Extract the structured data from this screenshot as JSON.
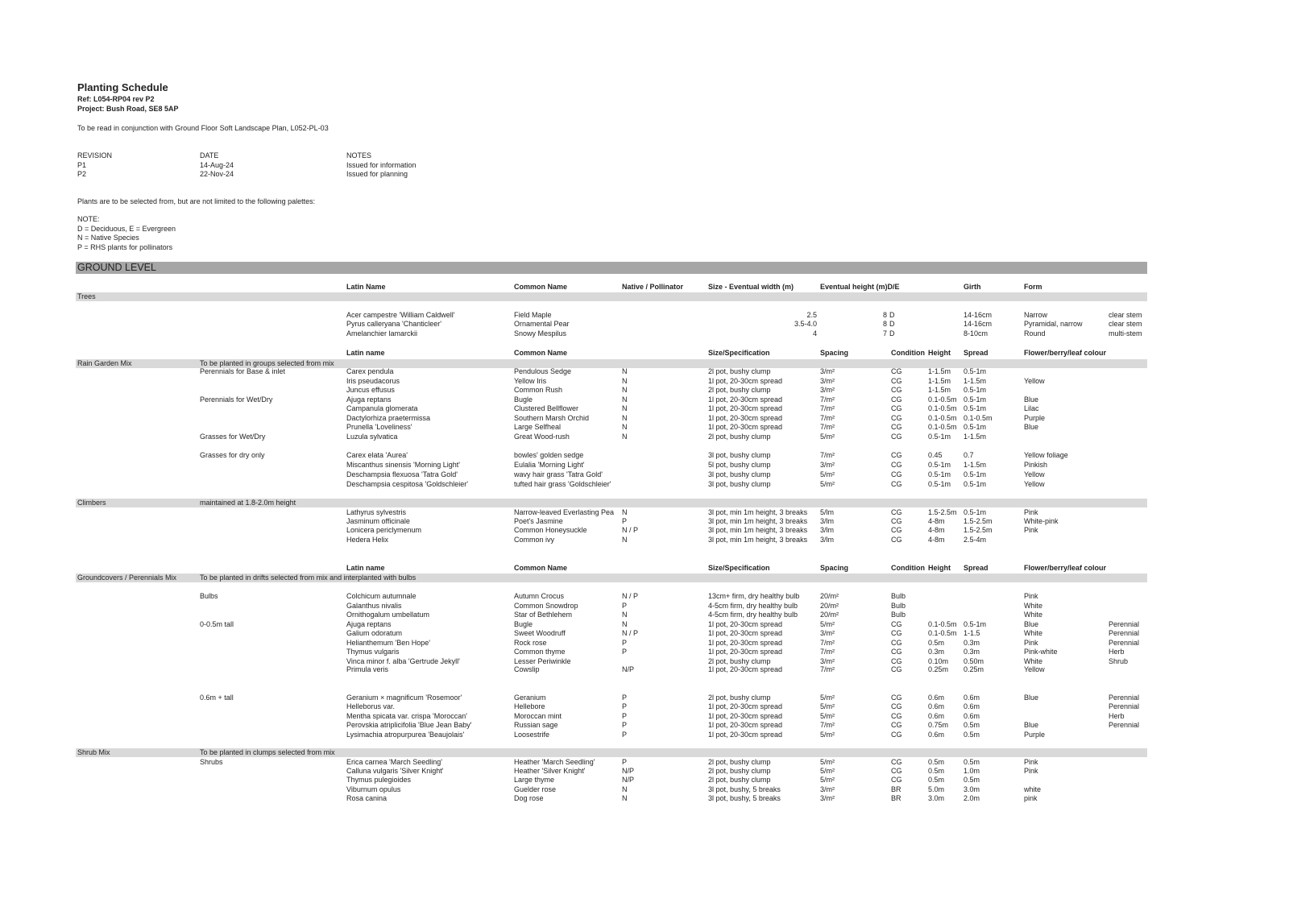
{
  "header": {
    "title": "Planting Schedule",
    "ref": "Ref: L054-RP04 rev P2",
    "project": "Project: Bush Road, SE8 5AP",
    "read_note": "To be read in conjunction with Ground Floor Soft Landscape Plan, L052-PL-03"
  },
  "revisions": {
    "headers": [
      "REVISION",
      "DATE",
      "NOTES"
    ],
    "rows": [
      [
        "P1",
        "14-Aug-24",
        "Issued for information"
      ],
      [
        "P2",
        "22-Nov-24",
        "Issued for planning"
      ]
    ]
  },
  "palette_note": "Plants are to be selected from, but are not limited to the following palettes:",
  "legend": [
    "NOTE:",
    "D = Deciduous, E = Evergreen",
    "N = Native Species",
    "P = RHS plants for pollinators"
  ],
  "level_title": "GROUND LEVEL",
  "tree_headers": [
    "Latin Name",
    "Common Name",
    "Native / Pollinator",
    "Size - Eventual width (m)",
    "Eventual height (m)D/E",
    "Girth",
    "Form"
  ],
  "mix_headers": [
    "Latin name",
    "Common Name",
    "Size/Specification",
    "Spacing",
    "Condition",
    "Height",
    "Spread",
    "Flower/berry/leaf colour"
  ],
  "trees": {
    "label": "Trees",
    "rows": [
      [
        "Acer campestre 'William Caldwell'",
        "Field Maple",
        "2.5",
        "8",
        "D",
        "14-16cm",
        "Narrow",
        "clear stem"
      ],
      [
        "Pyrus calleryana 'Chanticleer'",
        "Ornamental Pear",
        "3.5-4.0",
        "8",
        "D",
        "14-16cm",
        "Pyramidal, narrow",
        "clear stem"
      ],
      [
        "Amelanchier lamarckii",
        "Snowy Mespilus",
        "4",
        "7",
        "D",
        "8-10cm",
        "Round",
        "multi-stem"
      ]
    ]
  },
  "sections": [
    {
      "label": "Rain Garden Mix",
      "note": "To be planted in groups selected from mix",
      "groups": [
        {
          "label": "Perennials for Base & inlet",
          "rows": [
            [
              "Carex pendula",
              "Pendulous Sedge",
              "N",
              "2l pot, bushy clump",
              "3/m²",
              "CG",
              "1-1.5m",
              "0.5-1m",
              "",
              ""
            ],
            [
              "Iris pseudacorus",
              "Yellow Iris",
              "N",
              "1l pot, 20-30cm spread",
              "3/m²",
              "CG",
              "1-1.5m",
              "1-1.5m",
              "Yellow",
              ""
            ],
            [
              "Juncus effusus",
              "Common Rush",
              "N",
              "2l pot, bushy clump",
              "3/m²",
              "CG",
              "1-1.5m",
              "0.5-1m",
              "",
              ""
            ]
          ]
        },
        {
          "label": "Perennials for Wet/Dry",
          "rows": [
            [
              "Ajuga reptans",
              "Bugle",
              "N",
              "1l pot, 20-30cm spread",
              "7/m²",
              "CG",
              "0.1-0.5m",
              "0.5-1m",
              "Blue",
              ""
            ],
            [
              "Campanula glomerata",
              "Clustered Bellflower",
              "N",
              "1l pot, 20-30cm spread",
              "7/m²",
              "CG",
              "0.1-0.5m",
              "0.5-1m",
              "Lilac",
              ""
            ],
            [
              "Dactylorhiza praetermissa",
              "Southern Marsh Orchid",
              "N",
              "1l pot, 20-30cm spread",
              "7/m²",
              "CG",
              "0.1-0.5m",
              "0.1-0.5m",
              "Purple",
              ""
            ],
            [
              "Prunella 'Loveliness'",
              "Large Selfheal",
              "N",
              "1l pot, 20-30cm spread",
              "7/m²",
              "CG",
              "0.1-0.5m",
              "0.5-1m",
              "Blue",
              ""
            ]
          ]
        },
        {
          "label": "Grasses for Wet/Dry",
          "rows": [
            [
              "Luzula sylvatica",
              "Great Wood-rush",
              "N",
              "2l pot, bushy clump",
              "5/m²",
              "CG",
              "0.5-1m",
              "1-1.5m",
              "",
              ""
            ]
          ]
        },
        {
          "label": "Grasses for dry only",
          "rows": [
            [
              "Carex elata 'Aurea'",
              "bowles' golden sedge",
              "",
              "3l pot, bushy clump",
              "7/m²",
              "CG",
              "0.45",
              "0.7",
              "Yellow foliage",
              ""
            ],
            [
              "Miscanthus sinensis 'Morning Light'",
              "Eulalia 'Morning Light'",
              "",
              "5l pot, bushy clump",
              "3/m²",
              "CG",
              "0.5-1m",
              "1-1.5m",
              "Pinkish",
              ""
            ],
            [
              "Deschampsia flexuosa 'Tatra Gold'",
              "wavy hair grass 'Tatra Gold'",
              "",
              "3l pot, bushy clump",
              "5/m²",
              "CG",
              "0.5-1m",
              "0.5-1m",
              "Yellow",
              ""
            ],
            [
              "Deschampsia cespitosa 'Goldschleier'",
              "tufted hair grass 'Goldschleier'",
              "",
              "3l pot, bushy clump",
              "5/m²",
              "CG",
              "0.5-1m",
              "0.5-1m",
              "Yellow",
              ""
            ]
          ]
        }
      ]
    },
    {
      "label": "Climbers",
      "note": "maintained at 1.8-2.0m height",
      "groups": [
        {
          "label": "",
          "rows": [
            [
              "Lathyrus sylvestris",
              "Narrow-leaved Everlasting Pea",
              "N",
              "3l pot, min 1m height, 3 breaks",
              "5/lm",
              "CG",
              "1.5-2.5m",
              "0.5-1m",
              "Pink",
              ""
            ],
            [
              "Jasminum officinale",
              "Poet's Jasmine",
              "P",
              "3l pot, min 1m height, 3 breaks",
              "3/lm",
              "CG",
              "4-8m",
              "1.5-2.5m",
              "White-pink",
              ""
            ],
            [
              "Lonicera periclymenum",
              "Common Honeysuckle",
              "N / P",
              "3l pot, min 1m height, 3 breaks",
              "3/lm",
              "CG",
              "4-8m",
              "1.5-2.5m",
              "Pink",
              ""
            ],
            [
              "Hedera Helix",
              "Common ivy",
              "N",
              "3l pot, min 1m height, 3 breaks",
              "3/lm",
              "CG",
              "4-8m",
              "2.5-4m",
              "",
              ""
            ]
          ]
        }
      ]
    },
    {
      "label": "Groundcovers / Perennials Mix",
      "note": "To be planted in drifts selected from mix and interplanted with bulbs",
      "groups": [
        {
          "label": "Bulbs",
          "rows": [
            [
              "Colchicum autumnale",
              "Autumn Crocus",
              "N / P",
              "13cm+ firm, dry healthy bulb",
              "20/m²",
              "Bulb",
              "",
              "",
              "Pink",
              ""
            ],
            [
              "Galanthus nivalis",
              "Common Snowdrop",
              "P",
              "4-5cm firm, dry healthy bulb",
              "20/m²",
              "Bulb",
              "",
              "",
              "White",
              ""
            ],
            [
              "Ornithogalum umbellatum",
              "Star of Bethlehem",
              "N",
              "4-5cm firm, dry healthy bulb",
              "20/m²",
              "Bulb",
              "",
              "",
              "White",
              ""
            ]
          ]
        },
        {
          "label": "0-0.5m tall",
          "rows": [
            [
              "Ajuga reptans",
              "Bugle",
              "N",
              "1l pot, 20-30cm spread",
              "5/m²",
              "CG",
              "0.1-0.5m",
              "0.5-1m",
              "Blue",
              "Perennial"
            ],
            [
              "Galium odoratum",
              "Sweet Woodruff",
              "N / P",
              "1l pot, 20-30cm spread",
              "3/m²",
              "CG",
              "0.1-0.5m",
              "1-1.5",
              "White",
              "Perennial"
            ],
            [
              "Helianthemum 'Ben Hope'",
              "Rock rose",
              "P",
              "1l pot, 20-30cm spread",
              "7/m²",
              "CG",
              "0.5m",
              "0.3m",
              "Pink",
              "Perennial"
            ],
            [
              "Thymus vulgaris",
              "Common thyme",
              "P",
              "1l pot, 20-30cm spread",
              "7/m²",
              "CG",
              "0.3m",
              "0.3m",
              "Pink-white",
              "Herb"
            ],
            [
              "Vinca minor f. alba 'Gertrude Jekyll'",
              "Lesser Periwinkle",
              "",
              "2l pot, bushy clump",
              "3/m²",
              "CG",
              "0.10m",
              "0.50m",
              "White",
              "Shrub"
            ],
            [
              "Primula veris",
              "Cowslip",
              "N/P",
              "1l pot, 20-30cm spread",
              "7/m²",
              "CG",
              "0.25m",
              "0.25m",
              "Yellow",
              ""
            ]
          ]
        },
        {
          "label": "0.6m + tall",
          "rows": [
            [
              "Geranium × magnificum 'Rosemoor'",
              "Geranium",
              "P",
              "2l pot, bushy clump",
              "5/m²",
              "CG",
              "0.6m",
              "0.6m",
              "Blue",
              "Perennial"
            ],
            [
              "Helleborus var.",
              "Hellebore",
              "P",
              "1l pot, 20-30cm spread",
              "5/m²",
              "CG",
              "0.6m",
              "0.6m",
              "",
              "Perennial"
            ],
            [
              "Mentha spicata var. crispa 'Moroccan'",
              "Moroccan mint",
              "P",
              "1l pot, 20-30cm spread",
              "5/m²",
              "CG",
              "0.6m",
              "0.6m",
              "",
              "Herb"
            ],
            [
              "Perovskia atriplicifolia 'Blue Jean Baby'",
              "Russian sage",
              "P",
              "1l pot, 20-30cm spread",
              "7/m²",
              "CG",
              "0.75m",
              "0.5m",
              "Blue",
              "Perennial"
            ],
            [
              "Lysimachia atropurpurea 'Beaujolais'",
              "Loosestrife",
              "P",
              "1l pot, 20-30cm spread",
              "5/m²",
              "CG",
              "0.6m",
              "0.5m",
              "Purple",
              ""
            ]
          ]
        }
      ]
    },
    {
      "label": "Shrub Mix",
      "note": "To be planted in clumps selected from mix",
      "groups": [
        {
          "label": "Shrubs",
          "rows": [
            [
              "Erica carnea 'March Seedling'",
              "Heather 'March Seedling'",
              "P",
              "2l pot, bushy clump",
              "5/m²",
              "CG",
              "0.5m",
              "0.5m",
              "Pink",
              ""
            ],
            [
              "Calluna vulgaris 'Silver Knight'",
              "Heather 'Silver Knight'",
              "N/P",
              "2l pot, bushy clump",
              "5/m²",
              "CG",
              "0.5m",
              "1.0m",
              "Pink",
              ""
            ],
            [
              "Thymus pulegioides",
              "Large thyme",
              "N/P",
              "2l pot, bushy clump",
              "5/m²",
              "CG",
              "0.5m",
              "0.5m",
              "",
              ""
            ],
            [
              "Viburnum opulus",
              "Guelder rose",
              "N",
              "3l pot, bushy, 5 breaks",
              "3/m²",
              "BR",
              "5.0m",
              "3.0m",
              "white",
              ""
            ],
            [
              "Rosa canina",
              "Dog rose",
              "N",
              "3l pot, bushy, 5 breaks",
              "3/m²",
              "BR",
              "3.0m",
              "2.0m",
              "pink",
              ""
            ]
          ]
        }
      ]
    }
  ],
  "colors": {
    "level_band": "#a6a6a6",
    "section_band": "#d9d9d9",
    "text": "#222222"
  }
}
